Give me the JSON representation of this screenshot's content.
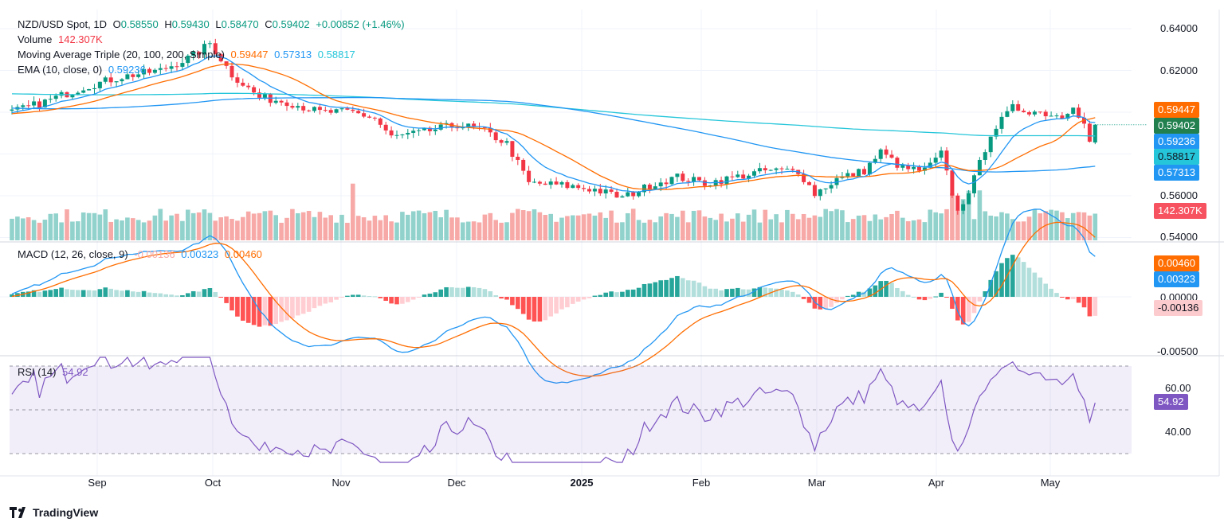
{
  "header": {
    "symbol": "NZD/USD Spot, 1D",
    "open_label": "O",
    "open": "0.58550",
    "high_label": "H",
    "high": "0.59430",
    "low_label": "L",
    "low": "0.58470",
    "close_label": "C",
    "close": "0.59402",
    "change": "+0.00852 (+1.46%)"
  },
  "volume": {
    "label": "Volume",
    "value": "142.307K"
  },
  "ma_triple": {
    "label": "Moving Average Triple (20, 100, 200, Simple)",
    "ma20": "0.59447",
    "ma100": "0.57313",
    "ma200": "0.58817"
  },
  "ema": {
    "label": "EMA (10, close, 0)",
    "value": "0.59236"
  },
  "macd": {
    "label": "MACD (12, 26, close, 9)",
    "hist": "-0.00136",
    "macd": "0.00323",
    "signal": "0.00460"
  },
  "rsi": {
    "label": "RSI (14)",
    "value": "54.92"
  },
  "price_axis": [
    "0.64000",
    "0.62000",
    "0.56000",
    "0.54000"
  ],
  "price_tags": {
    "ma20": "0.59447",
    "close": "0.59402",
    "ema": "0.59236",
    "ma200": "0.58817",
    "ma100": "0.57313",
    "volume": "142.307K"
  },
  "macd_axis": {
    "signal": "0.00460",
    "macd": "0.00323",
    "zero": "0.00000",
    "hist": "-0.00136",
    "low": "-0.00500"
  },
  "rsi_axis": {
    "top": "60.00",
    "value": "54.92",
    "bottom": "40.00"
  },
  "x_axis": [
    "Sep",
    "Oct",
    "Nov",
    "Dec",
    "2025",
    "Feb",
    "Mar",
    "Apr",
    "May"
  ],
  "brand": "TradingView",
  "colors": {
    "up": "#089981",
    "down": "#f23645",
    "ma20": "#ff6d00",
    "ma100": "#2196f3",
    "ma200": "#26c6da",
    "ema": "#2196f3",
    "rsi": "#7e57c2"
  },
  "chart_data": {
    "type": "candlestick",
    "title": "NZD/USD Spot, 1D",
    "bars": 198,
    "close_keyframes": [
      [
        0,
        0.6
      ],
      [
        6,
        0.605
      ],
      [
        13,
        0.612
      ],
      [
        20,
        0.617
      ],
      [
        27,
        0.62
      ],
      [
        33,
        0.627
      ],
      [
        36,
        0.633
      ],
      [
        40,
        0.618
      ],
      [
        45,
        0.607
      ],
      [
        50,
        0.605
      ],
      [
        56,
        0.6
      ],
      [
        62,
        0.6
      ],
      [
        66,
        0.597
      ],
      [
        69,
        0.588
      ],
      [
        74,
        0.59
      ],
      [
        81,
        0.594
      ],
      [
        85,
        0.592
      ],
      [
        90,
        0.585
      ],
      [
        94,
        0.566
      ],
      [
        100,
        0.565
      ],
      [
        106,
        0.563
      ],
      [
        111,
        0.559
      ],
      [
        117,
        0.566
      ],
      [
        121,
        0.569
      ],
      [
        126,
        0.566
      ],
      [
        130,
        0.568
      ],
      [
        137,
        0.572
      ],
      [
        143,
        0.572
      ],
      [
        146,
        0.561
      ],
      [
        150,
        0.568
      ],
      [
        155,
        0.572
      ],
      [
        158,
        0.581
      ],
      [
        162,
        0.573
      ],
      [
        166,
        0.572
      ],
      [
        169,
        0.58
      ],
      [
        172,
        0.552
      ],
      [
        175,
        0.568
      ],
      [
        178,
        0.59
      ],
      [
        182,
        0.602
      ],
      [
        187,
        0.6
      ],
      [
        191,
        0.598
      ],
      [
        193,
        0.604
      ],
      [
        195,
        0.594
      ],
      [
        196,
        0.586
      ],
      [
        197,
        0.59402
      ]
    ],
    "prehistory_keyframes": [
      [
        0,
        0.612
      ],
      [
        60,
        0.62
      ],
      [
        120,
        0.605
      ],
      [
        170,
        0.598
      ],
      [
        200,
        0.6
      ]
    ],
    "last_bar": {
      "open": 0.5855,
      "high": 0.5943,
      "low": 0.5847,
      "close": 0.59402
    },
    "ylim": [
      0.535,
      0.645
    ],
    "macd_ylim": [
      -0.0055,
      0.0055
    ],
    "rsi_ylim": [
      25,
      75
    ]
  }
}
